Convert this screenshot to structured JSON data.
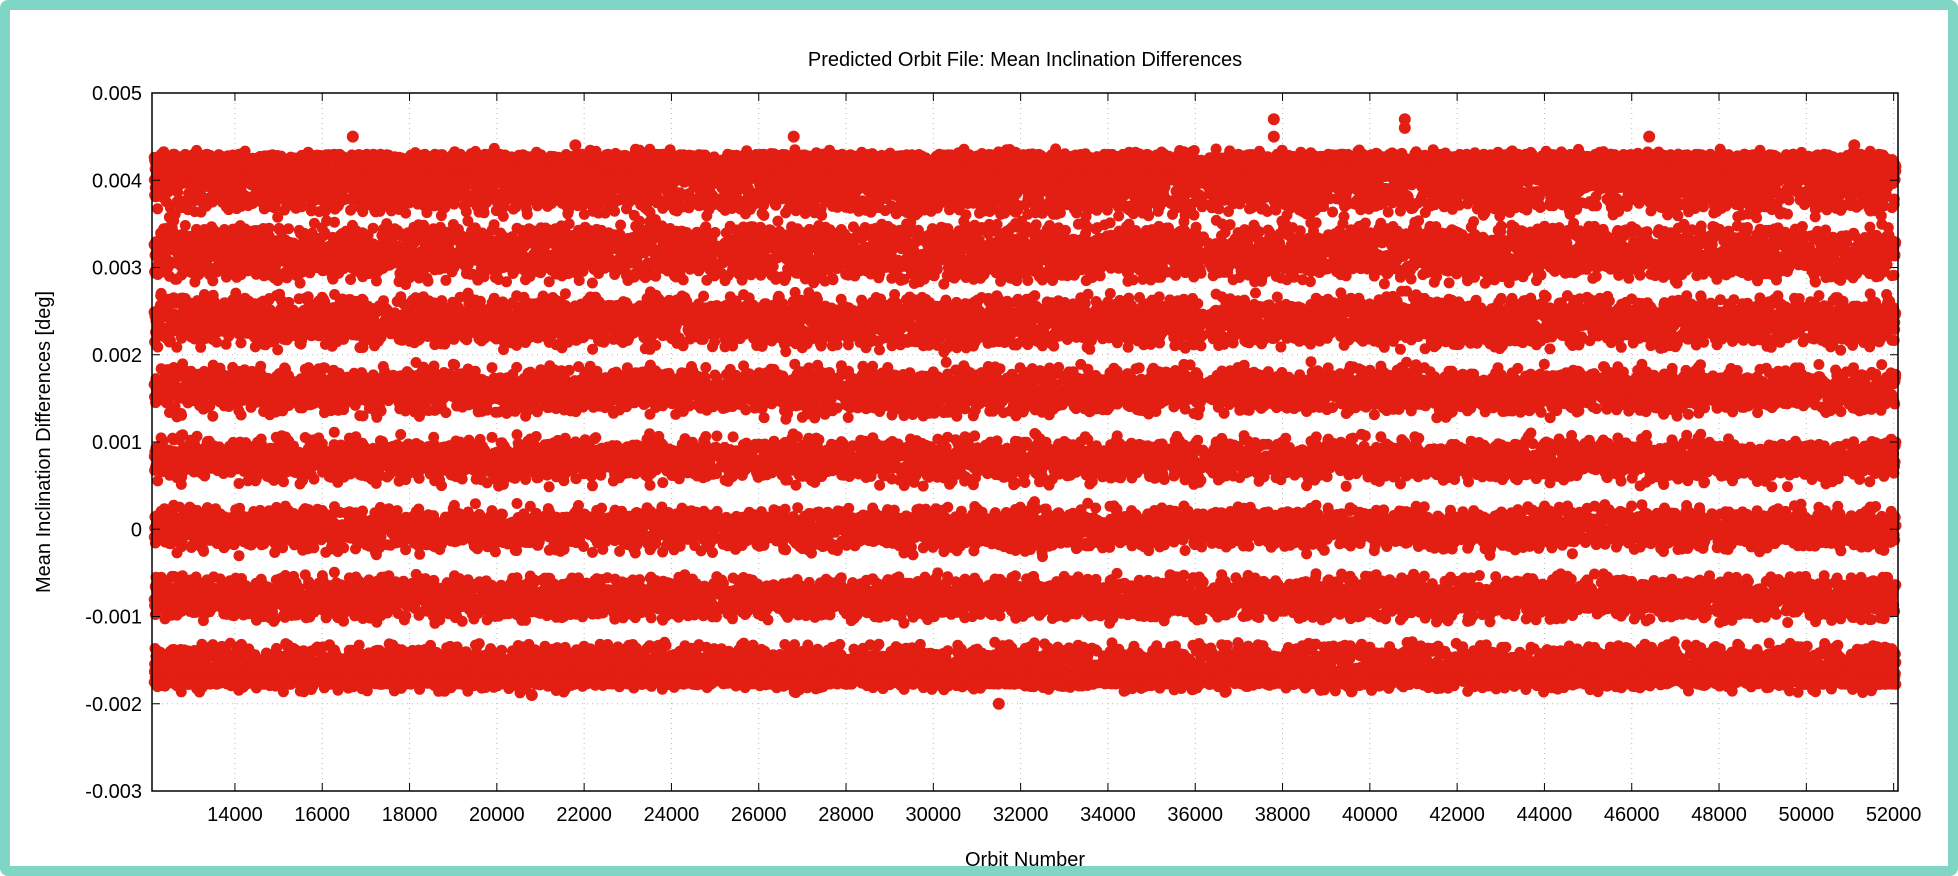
{
  "chart_data": {
    "type": "scatter",
    "title": "Predicted Orbit File: Mean Inclination Differences",
    "xlabel": "Orbit Number",
    "ylabel": "Mean Inclination Differences [deg]",
    "xlim": [
      12100,
      52100
    ],
    "ylim": [
      -0.003,
      0.005
    ],
    "xticks": [
      14000,
      16000,
      18000,
      20000,
      22000,
      24000,
      26000,
      28000,
      30000,
      32000,
      34000,
      36000,
      38000,
      40000,
      42000,
      44000,
      46000,
      48000,
      50000,
      52000
    ],
    "yticks": [
      "-0.003",
      "-0.002",
      "-0.001",
      "0",
      "0.001",
      "0.002",
      "0.003",
      "0.004",
      "0.005"
    ],
    "grid": true,
    "marker_color": "#e31e12",
    "series": [
      {
        "band": {
          "x_start": 12150,
          "x_end": 52050,
          "upper_typical": 0.004,
          "lower_typical": -0.0016,
          "gaps_x": [
            25100,
            36250
          ]
        },
        "outliers": [
          {
            "x": 12600,
            "y": -0.00175
          },
          {
            "x": 16700,
            "y": 0.0045
          },
          {
            "x": 18800,
            "y": -0.00185
          },
          {
            "x": 20800,
            "y": -0.0019
          },
          {
            "x": 21800,
            "y": 0.0044
          },
          {
            "x": 26800,
            "y": 0.0045
          },
          {
            "x": 28600,
            "y": 0.0043
          },
          {
            "x": 31500,
            "y": -0.002
          },
          {
            "x": 32300,
            "y": -0.0018
          },
          {
            "x": 37800,
            "y": 0.0047
          },
          {
            "x": 37800,
            "y": 0.0045
          },
          {
            "x": 39500,
            "y": -0.0018
          },
          {
            "x": 40800,
            "y": 0.0047
          },
          {
            "x": 40800,
            "y": 0.0046
          },
          {
            "x": 46400,
            "y": 0.0045
          },
          {
            "x": 48200,
            "y": -0.0018
          },
          {
            "x": 51100,
            "y": 0.0044
          },
          {
            "x": 50600,
            "y": -0.00175
          }
        ]
      }
    ]
  }
}
